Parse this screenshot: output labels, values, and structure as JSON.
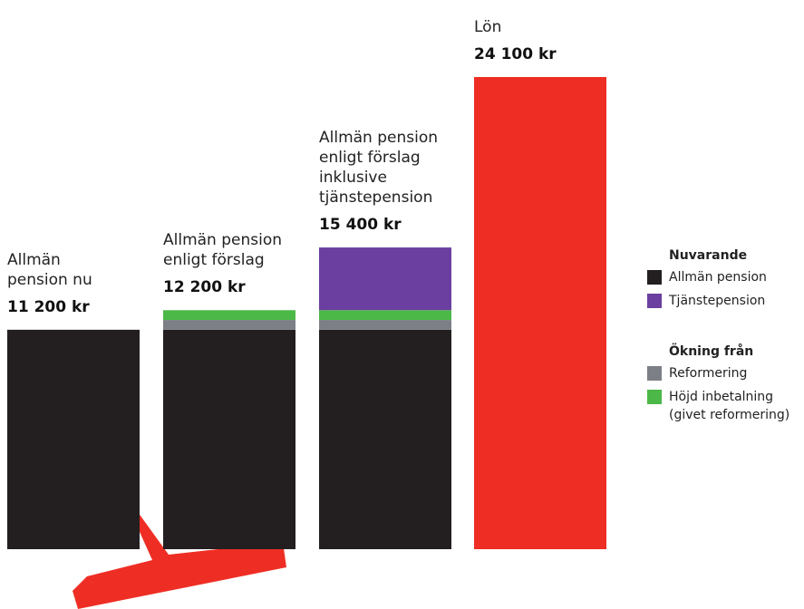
{
  "colors": {
    "allman": "#231f20",
    "tjanst": "#6b3fa0",
    "reform": "#7c7f86",
    "hojd": "#4cb848",
    "lon": "#ee2e24",
    "decoration": "#ee2e24"
  },
  "legend": {
    "group1_title": "Nuvarande",
    "group1_items": [
      "Allmän pension",
      "Tjänstepension"
    ],
    "group2_title": "Ökning från",
    "group2_items": [
      "Reformering",
      "Höjd inbetalning\n(givet reformering)"
    ]
  },
  "chart_data": {
    "type": "bar",
    "stacked": true,
    "unit": "kr",
    "categories": [
      "Allmän pension nu",
      "Allmän pension enligt förslag",
      "Allmän pension enligt förslag inklusive tjänstepension",
      "Lön"
    ],
    "category_lines": [
      [
        "Allmän",
        "pension nu"
      ],
      [
        "Allmän pension",
        "enligt förslag"
      ],
      [
        "Allmän pension",
        "enligt förslag",
        "inklusive",
        "tjänstepension"
      ],
      [
        "Lön"
      ]
    ],
    "totals_text": [
      "11 200 kr",
      "12 200 kr",
      "15 400 kr",
      "24 100 kr"
    ],
    "totals": [
      11200,
      12200,
      15400,
      24100
    ],
    "series": [
      {
        "name": "Allmän pension",
        "values": [
          11200,
          11200,
          11200,
          0
        ]
      },
      {
        "name": "Reformering",
        "values": [
          0,
          500,
          500,
          0
        ]
      },
      {
        "name": "Höjd inbetalning (givet reformering)",
        "values": [
          0,
          500,
          500,
          0
        ]
      },
      {
        "name": "Tjänstepension",
        "values": [
          0,
          0,
          3200,
          0
        ]
      },
      {
        "name": "Lön",
        "values": [
          0,
          0,
          0,
          24100
        ]
      }
    ]
  }
}
